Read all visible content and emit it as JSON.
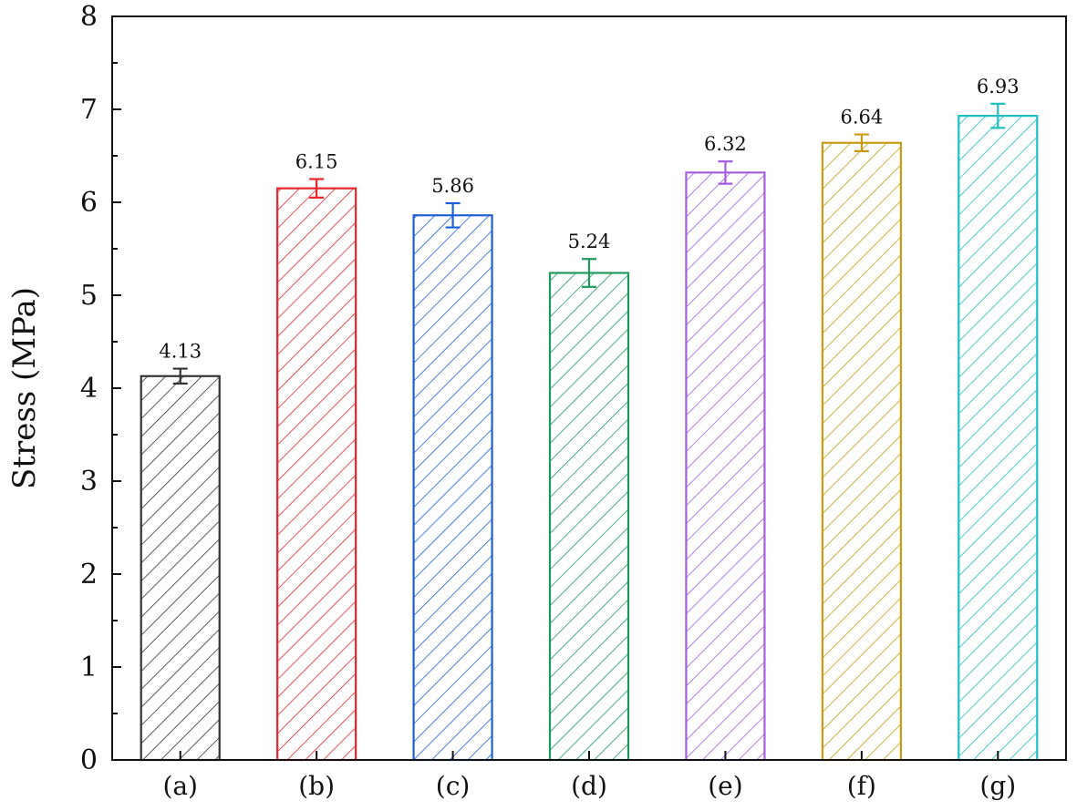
{
  "chart_data": {
    "type": "bar",
    "title": "",
    "xlabel": "",
    "ylabel": "Stress (MPa)",
    "ylim": [
      0,
      8
    ],
    "yticks": [
      0,
      1,
      2,
      3,
      4,
      5,
      6,
      7,
      8
    ],
    "categories": [
      "(a)",
      "(b)",
      "(c)",
      "(d)",
      "(e)",
      "(f)",
      "(g)"
    ],
    "values": [
      4.13,
      6.15,
      5.86,
      5.24,
      6.32,
      6.64,
      6.93
    ],
    "value_labels": [
      "4.13",
      "6.15",
      "5.86",
      "5.24",
      "6.32",
      "6.64",
      "6.93"
    ],
    "errors": [
      0.08,
      0.1,
      0.13,
      0.15,
      0.12,
      0.09,
      0.13
    ],
    "colors": [
      "#333333",
      "#e8262b",
      "#1f5fd6",
      "#1e9a5a",
      "#a45ee0",
      "#c79a12",
      "#1fbfc2"
    ],
    "fill": "diagonal-hatch",
    "grid": false,
    "legend": "none"
  }
}
